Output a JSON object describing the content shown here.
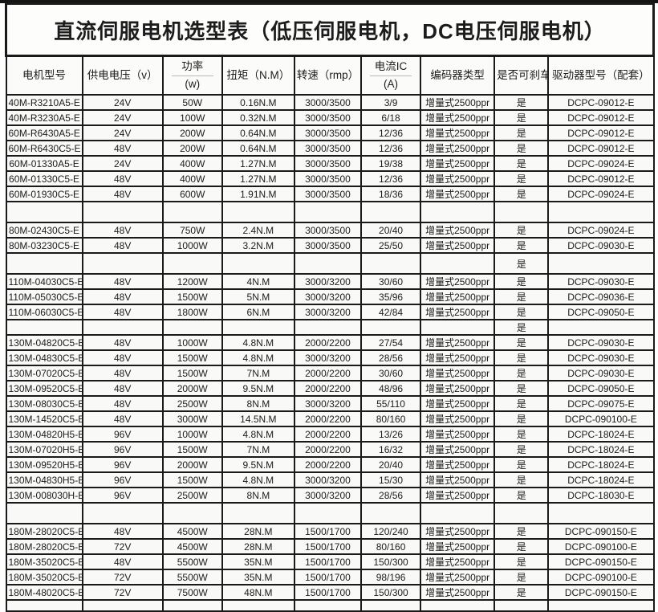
{
  "title": "直流伺服电机选型表（低压伺服电机，DC电压伺服电机）",
  "yes_label": "是",
  "table": {
    "headers": [
      {
        "line1": "电机型号"
      },
      {
        "line1": "供电电压（v）"
      },
      {
        "line1": "功率",
        "line2": "(w)"
      },
      {
        "line1": "扭矩（N.M）"
      },
      {
        "line1": "转速（rmp）"
      },
      {
        "line1": "电流IC",
        "line2": "(A)"
      },
      {
        "line1": "编码器类型"
      },
      {
        "line1": "是否可刹车"
      },
      {
        "line1": "驱动器型号（配套）"
      }
    ],
    "rows": [
      {
        "cells": [
          "40M-R3210A5-E",
          "24V",
          "50W",
          "0.16N.M",
          "3000/3500",
          "3/9",
          "增量式2500ppr",
          "是",
          "DCPC-09012-E"
        ]
      },
      {
        "cells": [
          "40M-R3230A5-E",
          "24V",
          "100W",
          "0.32N.M",
          "3000/3500",
          "6/18",
          "增量式2500ppr",
          "是",
          "DCPC-09012-E"
        ]
      },
      {
        "cells": [
          "60M-R6430A5-E",
          "24V",
          "200W",
          "0.64N.M",
          "3000/3500",
          "12/36",
          "增量式2500ppr",
          "是",
          "DCPC-09012-E"
        ]
      },
      {
        "cells": [
          "60M-R6430C5-E",
          "48V",
          "200W",
          "0.64N.M",
          "3000/3500",
          "12/36",
          "增量式2500ppr",
          "是",
          "DCPC-09012-E"
        ]
      },
      {
        "cells": [
          "60M-01330A5-E",
          "24V",
          "400W",
          "1.27N.M",
          "3000/3500",
          "19/38",
          "增量式2500ppr",
          "是",
          "DCPC-09024-E"
        ]
      },
      {
        "cells": [
          "60M-01330C5-E",
          "48V",
          "400W",
          "1.27N.M",
          "3000/3500",
          "12/36",
          "增量式2500ppr",
          "是",
          "DCPC-09012-E"
        ]
      },
      {
        "cells": [
          "60M-01930C5-E",
          "48V",
          "600W",
          "1.91N.M",
          "3000/3500",
          "18/36",
          "增量式2500ppr",
          "是",
          "DCPC-09024-E"
        ]
      },
      {
        "cells": [
          "",
          "",
          "",
          "",
          "",
          "",
          "",
          "",
          ""
        ],
        "tall": true
      },
      {
        "cells": [
          "80M-02430C5-E",
          "48V",
          "750W",
          "2.4N.M",
          "3000/3500",
          "20/40",
          "增量式2500ppr",
          "是",
          "DCPC-09024-E"
        ]
      },
      {
        "cells": [
          "80M-03230C5-E",
          "48V",
          "1000W",
          "3.2N.M",
          "3000/3500",
          "25/50",
          "增量式2500ppr",
          "是",
          "DCPC-09030-E"
        ]
      },
      {
        "cells": [
          "",
          "",
          "",
          "",
          "",
          "",
          "",
          "是",
          ""
        ],
        "tall": true
      },
      {
        "cells": [
          "110M-04030C5-E",
          "48V",
          "1200W",
          "4N.M",
          "3000/3200",
          "30/60",
          "增量式2500ppr",
          "是",
          "DCPC-09030-E"
        ]
      },
      {
        "cells": [
          "110M-05030C5-E",
          "48V",
          "1500W",
          "5N.M",
          "3000/3200",
          "35/96",
          "增量式2500ppr",
          "是",
          "DCPC-09036-E"
        ]
      },
      {
        "cells": [
          "110M-06030C5-E",
          "48V",
          "1800W",
          "6N.M",
          "3000/3200",
          "42/84",
          "增量式2500ppr",
          "是",
          "DCPC-09050-E"
        ]
      },
      {
        "cells": [
          "",
          "",
          "",
          "",
          "",
          "",
          "",
          "是",
          ""
        ]
      },
      {
        "cells": [
          "130M-04820C5-E",
          "48V",
          "1000W",
          "4.8N.M",
          "2000/2200",
          "27/54",
          "增量式2500ppr",
          "是",
          "DCPC-09030-E"
        ]
      },
      {
        "cells": [
          "130M-04830C5-E",
          "48V",
          "1500W",
          "4.8N.M",
          "3000/3200",
          "28/56",
          "增量式2500ppr",
          "是",
          "DCPC-09030-E"
        ]
      },
      {
        "cells": [
          "130M-07020C5-E",
          "48V",
          "1500W",
          "7N.M",
          "2000/2200",
          "30/60",
          "增量式2500ppr",
          "是",
          "DCPC-09030-E"
        ]
      },
      {
        "cells": [
          "130M-09520C5-E",
          "48V",
          "2000W",
          "9.5N.M",
          "2000/2200",
          "48/96",
          "增量式2500ppr",
          "是",
          "DCPC-09050-E"
        ]
      },
      {
        "cells": [
          "130M-08030C5-E",
          "48V",
          "2500W",
          "8N.M",
          "3000/3200",
          "55/110",
          "增量式2500ppr",
          "是",
          "DCPC-09075-E"
        ]
      },
      {
        "cells": [
          "130M-14520C5-E",
          "48V",
          "3000W",
          "14.5N.M",
          "2000/2200",
          "80/160",
          "增量式2500ppr",
          "是",
          "DCPC-090100-E"
        ]
      },
      {
        "cells": [
          "130M-04820H5-E",
          "96V",
          "1000W",
          "4.8N.M",
          "2000/2200",
          "13/26",
          "增量式2500ppr",
          "是",
          "DCPC-18024-E"
        ]
      },
      {
        "cells": [
          "130M-07020H5-E",
          "96V",
          "1500W",
          "7N.M",
          "2000/2200",
          "16/32",
          "增量式2500ppr",
          "是",
          "DCPC-18024-E"
        ]
      },
      {
        "cells": [
          "130M-09520H5-E",
          "96V",
          "2000W",
          "9.5N.M",
          "2000/2200",
          "20/40",
          "增量式2500ppr",
          "是",
          "DCPC-18024-E"
        ]
      },
      {
        "cells": [
          "130M-04830H5-E",
          "96V",
          "1500W",
          "4.8N.M",
          "3000/3200",
          "15/30",
          "增量式2500ppr",
          "是",
          "DCPC-18024-E"
        ]
      },
      {
        "cells": [
          "130M-008030H-E",
          "96V",
          "2500W",
          "8N.M",
          "3000/3200",
          "28/56",
          "增量式2500ppr",
          "是",
          "DCPC-18030-E"
        ]
      },
      {
        "cells": [
          "",
          "",
          "",
          "",
          "",
          "",
          "",
          "",
          ""
        ],
        "tall": true
      },
      {
        "cells": [
          "180M-28020C5-E",
          "48V",
          "4500W",
          "28N.M",
          "1500/1700",
          "120/240",
          "增量式2500ppr",
          "是",
          "DCPC-090150-E"
        ]
      },
      {
        "cells": [
          "180M-28020C5-E",
          "72V",
          "4500W",
          "28N.M",
          "1500/1700",
          "80/160",
          "增量式2500ppr",
          "是",
          "DCPC-090100-E"
        ]
      },
      {
        "cells": [
          "180M-35020C5-E",
          "48V",
          "5500W",
          "35N.M",
          "1500/1700",
          "150/300",
          "增量式2500ppr",
          "是",
          "DCPC-090150-E"
        ]
      },
      {
        "cells": [
          "180M-35020C5-E",
          "72V",
          "5500W",
          "35N.M",
          "1500/1700",
          "98/196",
          "增量式2500ppr",
          "是",
          "DCPC-090100-E"
        ]
      },
      {
        "cells": [
          "180M-48020C5-E",
          "72V",
          "7500W",
          "48N.M",
          "1500/1700",
          "150/300",
          "增量式2500ppr",
          "是",
          "DCPC-090150-E"
        ]
      },
      {
        "cells": [
          "",
          "",
          "",
          "",
          "",
          "",
          "",
          "",
          ""
        ],
        "stub": true
      }
    ]
  }
}
